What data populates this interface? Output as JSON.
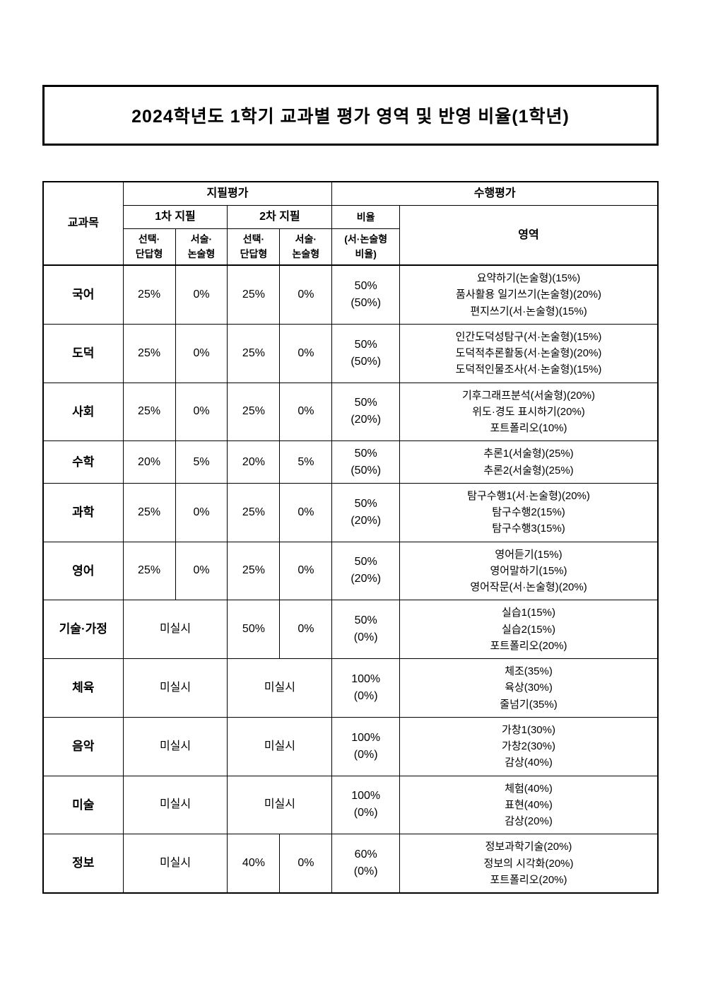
{
  "title": "2024학년도 1학기 교과별 평가 영역 및 반영 비율(1학년)",
  "headers": {
    "subject": "교과목",
    "written": "지필평가",
    "performance": "수행평가",
    "exam1": "1차 지필",
    "exam2": "2차 지필",
    "ratio": "비율",
    "ratio_sub": "(서·논술형\n비율)",
    "area": "영역",
    "select": "선택·\n단답형",
    "essay": "서술·\n논술형"
  },
  "none_text": "미실시",
  "rows": [
    {
      "subject": "국어",
      "e1a": "25%",
      "e1b": "0%",
      "e2a": "25%",
      "e2b": "0%",
      "ratio": "50%\n(50%)",
      "area": "요약하기(논술형)(15%)\n품사활용 일기쓰기(논술형)(20%)\n편지쓰기(서·논술형)(15%)"
    },
    {
      "subject": "도덕",
      "e1a": "25%",
      "e1b": "0%",
      "e2a": "25%",
      "e2b": "0%",
      "ratio": "50%\n(50%)",
      "area": "인간도덕성탐구(서·논술형)(15%)\n도덕적추론활동(서·논술형)(20%)\n도덕적인물조사(서·논술형)(15%)"
    },
    {
      "subject": "사회",
      "e1a": "25%",
      "e1b": "0%",
      "e2a": "25%",
      "e2b": "0%",
      "ratio": "50%\n(20%)",
      "area": "기후그래프분석(서술형)(20%)\n위도·경도 표시하기(20%)\n포트폴리오(10%)"
    },
    {
      "subject": "수학",
      "e1a": "20%",
      "e1b": "5%",
      "e2a": "20%",
      "e2b": "5%",
      "ratio": "50%\n(50%)",
      "area": "추론1(서술형)(25%)\n추론2(서술형)(25%)"
    },
    {
      "subject": "과학",
      "e1a": "25%",
      "e1b": "0%",
      "e2a": "25%",
      "e2b": "0%",
      "ratio": "50%\n(20%)",
      "area": "탐구수행1(서·논술형)(20%)\n탐구수행2(15%)\n탐구수행3(15%)"
    },
    {
      "subject": "영어",
      "e1a": "25%",
      "e1b": "0%",
      "e2a": "25%",
      "e2b": "0%",
      "ratio": "50%\n(20%)",
      "area": "영어듣기(15%)\n영어말하기(15%)\n영어작문(서·논술형)(20%)"
    },
    {
      "subject": "기술·가정",
      "exam1_merged": true,
      "e2a": "50%",
      "e2b": "0%",
      "ratio": "50%\n(0%)",
      "area": "실습1(15%)\n실습2(15%)\n포트폴리오(20%)"
    },
    {
      "subject": "체육",
      "exam1_merged": true,
      "exam2_merged": true,
      "ratio": "100%\n(0%)",
      "area": "체조(35%)\n육상(30%)\n줄넘기(35%)"
    },
    {
      "subject": "음악",
      "exam1_merged": true,
      "exam2_merged": true,
      "ratio": "100%\n(0%)",
      "area": "가창1(30%)\n가창2(30%)\n감상(40%)"
    },
    {
      "subject": "미술",
      "exam1_merged": true,
      "exam2_merged": true,
      "ratio": "100%\n(0%)",
      "area": "체험(40%)\n표현(40%)\n감상(20%)"
    },
    {
      "subject": "정보",
      "exam1_merged": true,
      "e2a": "40%",
      "e2b": "0%",
      "ratio": "60%\n(0%)",
      "area": "정보과학기술(20%)\n정보의 시각화(20%)\n포트폴리오(20%)"
    }
  ],
  "style": {
    "page_bg": "#ffffff",
    "border_color": "#000000",
    "title_border_width": 3,
    "outer_border_width": 2,
    "cell_border_width": 1,
    "title_fontsize": 25,
    "header_fontsize": 16,
    "subhead_fontsize": 14,
    "body_fontsize": 16,
    "area_fontsize": 15,
    "font_family": "Malgun Gothic",
    "col_widths_pct": {
      "subject": 13,
      "exam": 8.5,
      "ratio": 11,
      "area": 42
    }
  }
}
